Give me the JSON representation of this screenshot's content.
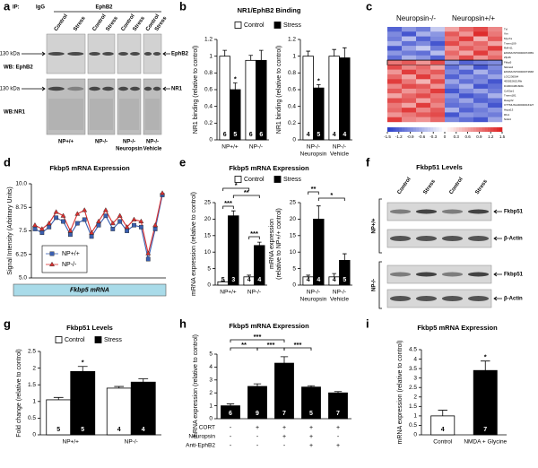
{
  "chart_data": [
    {
      "type": "bar",
      "label": "b",
      "title": "NR1/EphB2 Binding",
      "ylabel": "NR1 binding (relative to control)",
      "categories": [
        "NP+/+",
        "NP-/-"
      ],
      "series": [
        {
          "name": "Control",
          "color": "#ffffff",
          "values": [
            1.0,
            0.95
          ],
          "errors": [
            0.07,
            0.06
          ],
          "n": [
            6,
            6
          ]
        },
        {
          "name": "Stress",
          "color": "#000000",
          "values": [
            0.6,
            0.95
          ],
          "errors": [
            0.08,
            0.12
          ],
          "n": [
            5,
            6
          ],
          "marks": [
            "*",
            null
          ]
        }
      ],
      "ylim": [
        0,
        1.2
      ],
      "yticks": [
        0,
        0.2,
        0.4,
        0.6,
        0.8,
        1,
        1.2
      ],
      "legend": true
    },
    {
      "type": "bar",
      "ylabel": "NR1 binding (relative to control)",
      "categories": [
        [
          "NP-/-",
          "Neuropsin"
        ],
        [
          "NP-/-",
          "Vehicle"
        ]
      ],
      "series": [
        {
          "color": "#ffffff",
          "values": [
            1.0,
            1.0
          ],
          "errors": [
            0.06,
            0.08
          ],
          "n": [
            4,
            4
          ]
        },
        {
          "color": "#000000",
          "values": [
            0.62,
            0.98
          ],
          "errors": [
            0.04,
            0.12
          ],
          "n": [
            5,
            4
          ],
          "marks": [
            "*",
            null
          ]
        }
      ],
      "ylim": [
        0,
        1.2
      ],
      "yticks": [
        0,
        0.2,
        0.4,
        0.6,
        0.8,
        1,
        1.2
      ]
    },
    {
      "type": "heatmap",
      "label": "c",
      "groups": [
        "Neuropsin-/-",
        "Neuropsin+/+"
      ],
      "rows": [
        "Tzl",
        "Vtn",
        "Myo7a",
        "Tmem109",
        "Rtl4-61",
        "ENSMUST00000072959",
        "Zfp46",
        "Fkbp5",
        "Nkiras2",
        "ENSMUST00000073668",
        "LOC236564",
        "4930526I21Rik",
        "D430041B16Rik",
        "Cc42ar1",
        "Tmem181",
        "Rasgrf2",
        "OTTMUSG00000016327",
        "Hspa13",
        "Rfx1",
        "Ndst4"
      ],
      "highlight": "Fkbp5",
      "values": [
        [
          -1.2,
          -0.8,
          -1.0,
          -0.4,
          0.6,
          1.0,
          1.2,
          0.8
        ],
        [
          -0.9,
          -1.3,
          -0.6,
          -0.8,
          1.1,
          0.7,
          1.4,
          0.9
        ],
        [
          -1.0,
          -0.5,
          -1.2,
          -0.9,
          0.9,
          1.3,
          0.5,
          1.1
        ],
        [
          -0.6,
          -1.1,
          -0.9,
          -1.3,
          1.2,
          0.8,
          1.0,
          0.6
        ],
        [
          -1.3,
          -0.7,
          -0.4,
          -1.0,
          0.7,
          1.1,
          0.9,
          1.3
        ],
        [
          -0.8,
          -1.0,
          -1.1,
          -0.5,
          1.0,
          0.6,
          1.3,
          0.8
        ],
        [
          -1.1,
          -0.6,
          -0.8,
          -1.2,
          0.8,
          1.2,
          0.7,
          1.0
        ],
        [
          0.9,
          1.1,
          0.7,
          1.2,
          -0.8,
          -1.2,
          -1.0,
          -0.9
        ],
        [
          1.2,
          0.8,
          1.0,
          0.6,
          -1.1,
          -0.7,
          -1.3,
          -0.9
        ],
        [
          0.7,
          1.3,
          0.9,
          1.1,
          -0.9,
          -1.2,
          -0.6,
          -1.0
        ],
        [
          1.0,
          0.6,
          1.3,
          0.8,
          -1.2,
          -0.8,
          -1.0,
          -0.7
        ],
        [
          1.3,
          0.9,
          0.5,
          1.2,
          -0.7,
          -1.1,
          -0.9,
          -1.3
        ],
        [
          0.8,
          1.2,
          1.1,
          0.7,
          -1.0,
          -0.6,
          -1.3,
          -1.1
        ],
        [
          1.1,
          0.7,
          0.9,
          1.3,
          -1.3,
          -0.9,
          -0.7,
          -1.0
        ],
        [
          0.6,
          1.0,
          1.2,
          0.9,
          -0.8,
          -1.3,
          -1.1,
          -0.6
        ],
        [
          1.2,
          1.1,
          0.6,
          1.0,
          -1.0,
          -0.7,
          -1.2,
          -1.1
        ],
        [
          0.9,
          0.6,
          1.3,
          0.8,
          -1.1,
          -1.0,
          -0.8,
          -1.3
        ],
        [
          1.0,
          1.3,
          0.8,
          1.1,
          -0.6,
          -1.2,
          -1.0,
          -0.8
        ],
        [
          0.7,
          0.9,
          1.1,
          1.2,
          -1.3,
          -0.8,
          -0.9,
          -1.0
        ],
        [
          1.3,
          0.8,
          0.7,
          1.0,
          -0.9,
          -1.1,
          -1.3,
          -0.7
        ]
      ],
      "clim": [
        -1.5,
        1.5
      ],
      "cticks": [
        -1.5,
        -1.2,
        -0.9,
        -0.6,
        -0.3,
        0,
        0.3,
        0.6,
        0.9,
        1.2,
        1.5
      ]
    },
    {
      "type": "line",
      "label": "d",
      "title": "Fkbp5 mRNA Expression",
      "ylabel": "Signal Intensity (Arbitrary Units)",
      "xlabel": "Fkbp5 mRNA",
      "categories": [
        null,
        null,
        null,
        null,
        null,
        null,
        null,
        null,
        null,
        null,
        null,
        null,
        null,
        null,
        null,
        null,
        null,
        null,
        null
      ],
      "series": [
        {
          "name": "NP+/+",
          "color": "#3a5fb0",
          "marker": "square",
          "values": [
            7.6,
            7.4,
            7.7,
            8.2,
            8.0,
            7.3,
            7.9,
            8.1,
            7.2,
            7.8,
            8.3,
            7.6,
            8.0,
            7.5,
            7.8,
            7.7,
            6.0,
            7.6,
            9.4
          ]
        },
        {
          "name": "NP-/-",
          "color": "#d93030",
          "marker": "triangle",
          "values": [
            7.8,
            7.6,
            7.9,
            8.5,
            8.3,
            7.5,
            8.4,
            8.6,
            7.4,
            8.0,
            8.6,
            7.9,
            8.3,
            7.7,
            8.1,
            8.0,
            6.3,
            7.8,
            9.5
          ]
        }
      ],
      "ylim": [
        5,
        10
      ],
      "yticks": [
        {
          "value": 5,
          "label": "5.0"
        },
        6.25,
        7.5,
        8.75,
        {
          "value": 10,
          "label": "10.0"
        }
      ],
      "legend": "lower left"
    },
    {
      "type": "bar",
      "label": "e",
      "title": "Fkbp5 mRNA Expression",
      "ylabel": "mRNA expression (relative to control)",
      "categories": [
        "NP+/+",
        "NP-/-"
      ],
      "series": [
        {
          "name": "Control",
          "color": "#ffffff",
          "values": [
            1,
            2.5
          ],
          "errors": [
            0.2,
            0.5
          ],
          "n": [
            5,
            4
          ]
        },
        {
          "name": "Stress",
          "color": "#000000",
          "values": [
            21,
            12
          ],
          "errors": [
            1.5,
            1
          ],
          "n": [
            3,
            4
          ]
        }
      ],
      "ylim": [
        0,
        25
      ],
      "yticks": [
        0,
        5,
        10,
        15,
        20,
        25
      ],
      "legend": true,
      "comparisons": [
        "*",
        "**",
        "***",
        "***"
      ]
    },
    {
      "type": "bar",
      "ylabel": [
        "mRNA expression",
        "(relative to NP+/+ control)"
      ],
      "categories": [
        [
          "NP-/-",
          "Neuropsin"
        ],
        [
          "NP-/-",
          "Vehicle"
        ]
      ],
      "series": [
        {
          "color": "#ffffff",
          "values": [
            2.5,
            2.5
          ],
          "errors": [
            0.5,
            1
          ],
          "n": [
            4,
            4
          ]
        },
        {
          "color": "#000000",
          "values": [
            20,
            7.5
          ],
          "errors": [
            4,
            2
          ],
          "n": [
            4,
            5
          ]
        }
      ],
      "ylim": [
        0,
        25
      ],
      "yticks": [
        0,
        5,
        10,
        15,
        20,
        25
      ],
      "comparisons": [
        "**",
        "*"
      ]
    },
    {
      "type": "bar",
      "label": "g",
      "title": "Fkbp51 Levels",
      "ylabel": "Fold change (relative to control)",
      "categories": [
        "NP+/+",
        "NP-/-"
      ],
      "series": [
        {
          "name": "Control",
          "color": "#ffffff",
          "values": [
            1.05,
            1.4
          ],
          "errors": [
            0.07,
            0.05
          ],
          "n": [
            5,
            4
          ]
        },
        {
          "name": "Stress",
          "color": "#000000",
          "values": [
            1.9,
            1.58
          ],
          "errors": [
            0.15,
            0.1
          ],
          "n": [
            5,
            4
          ],
          "marks": [
            "*",
            null
          ]
        }
      ],
      "ylim": [
        0,
        2.5
      ],
      "yticks": [
        0,
        0.5,
        1,
        1.5,
        2,
        2.5
      ],
      "legend": true
    },
    {
      "type": "bar",
      "label": "h",
      "title": "Fkbp5 mRNA Expression",
      "ylabel": "mRNA expression (relative to control)",
      "categories": [
        null,
        null,
        null,
        null,
        null
      ],
      "series": [
        {
          "color": "#000000",
          "values": [
            1,
            2.5,
            4.3,
            2.45,
            2.0
          ],
          "errors": [
            0.15,
            0.2,
            0.5,
            0.1,
            0.1
          ],
          "n": [
            6,
            9,
            7,
            5,
            7
          ]
        }
      ],
      "ylim": [
        0,
        5
      ],
      "yticks": [
        0,
        1,
        2,
        3,
        4,
        5
      ],
      "conditions": [
        {
          "name": "CORT",
          "values": [
            "-",
            "+",
            "+",
            "+",
            "+"
          ]
        },
        {
          "name": "Neuropsin",
          "values": [
            "-",
            "-",
            "+",
            "+",
            "-"
          ]
        },
        {
          "name": "Anti-EphB2",
          "values": [
            "-",
            "-",
            "-",
            "+",
            "+"
          ]
        }
      ],
      "comparisons": [
        "***",
        "**",
        "***",
        "***"
      ]
    },
    {
      "type": "bar",
      "label": "i",
      "title": "Fkbp5 mRNA Expression",
      "ylabel": "mRNA expression (relative to control)",
      "categories": [
        "Control",
        "NMDA + Glycine"
      ],
      "series": [
        {
          "colors": [
            "#ffffff",
            "#000000"
          ],
          "values": [
            1.0,
            3.4
          ],
          "errors": [
            0.3,
            0.5
          ],
          "n": [
            4,
            7
          ],
          "marks": [
            null,
            "*"
          ]
        }
      ],
      "ylim": [
        0,
        4.5
      ],
      "yticks": [
        0,
        0.5,
        1,
        1.5,
        2,
        2.5,
        3,
        3.5,
        4,
        4.5
      ]
    }
  ],
  "blot_a": {
    "label": "a",
    "ip": "IP:",
    "antibodies": [
      "IgG",
      "EphB2"
    ],
    "groups": [
      {
        "lanes": [
          "Control",
          "Stress"
        ],
        "name": [
          "NP+/+"
        ]
      },
      {
        "lanes": [
          "Control",
          "Stress"
        ],
        "name": [
          "NP-/-"
        ]
      },
      {
        "lanes": [
          "Control",
          "Stress"
        ],
        "name": [
          "NP-/-",
          "Neuropsin"
        ]
      },
      {
        "lanes": [
          "Control",
          "Stress"
        ],
        "name": [
          "NP-/-",
          "Vehicle"
        ]
      }
    ],
    "rows": [
      {
        "size": "130 kDa",
        "probe": "WB: EphB2",
        "target": "EphB2"
      },
      {
        "size": "130 kDa",
        "probe": "WB:NR1",
        "target": "NR1"
      }
    ]
  },
  "blot_f": {
    "label": "f",
    "title": "Fkbp51 Levels",
    "lanes": [
      "Control",
      "Stress",
      "Control",
      "Stress"
    ],
    "blocks": [
      {
        "genotype": "NP+/+",
        "bands": [
          "Fkbp51",
          "β-Actin"
        ]
      },
      {
        "genotype": "NP-/-",
        "bands": [
          "Fkbp51",
          "β-Actin"
        ]
      }
    ]
  }
}
